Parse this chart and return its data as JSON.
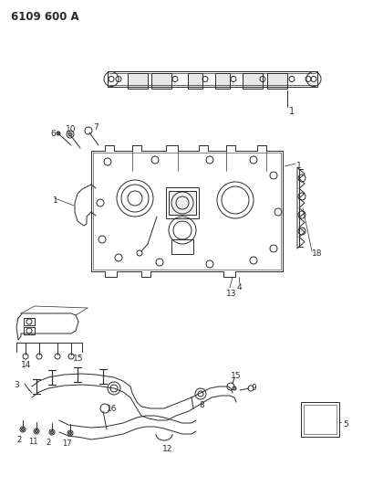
{
  "title": "6109 600 A",
  "bg_color": "#ffffff",
  "line_color": "#2a2a2a",
  "fig_width": 4.1,
  "fig_height": 5.33,
  "dpi": 100
}
